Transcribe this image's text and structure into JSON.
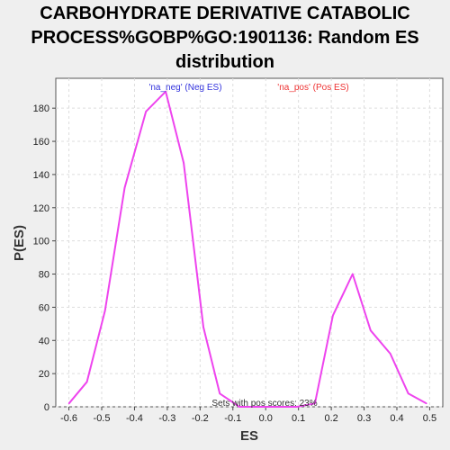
{
  "chart_data": {
    "type": "line",
    "title_lines": [
      "CARBOHYDRATE DERIVATIVE CATABOLIC",
      "PROCESS%GOBP%GO:1901136: Random ES",
      "distribution"
    ],
    "xlabel": "ES",
    "ylabel": "P(ES)",
    "xlim": [
      -0.64,
      0.54
    ],
    "ylim": [
      0,
      198
    ],
    "x_ticks": [
      -0.6,
      -0.5,
      -0.4,
      -0.3,
      -0.2,
      -0.1,
      0.0,
      0.1,
      0.2,
      0.3,
      0.4,
      0.5
    ],
    "x_tick_labels": [
      "-0.6",
      "-0.5",
      "-0.4",
      "-0.3",
      "-0.2",
      "-0.1",
      "0.0",
      "0.1",
      "0.2",
      "0.3",
      "0.4",
      "0.5"
    ],
    "y_ticks": [
      0,
      20,
      40,
      60,
      80,
      100,
      120,
      140,
      160,
      180
    ],
    "y_tick_labels": [
      "0",
      "20",
      "40",
      "60",
      "80",
      "100",
      "120",
      "140",
      "160",
      "180"
    ],
    "grid": true,
    "series": [
      {
        "name": "",
        "color": "#ee44ee",
        "x": [
          -0.6,
          -0.545,
          -0.49,
          -0.43,
          -0.365,
          -0.305,
          -0.25,
          -0.19,
          -0.14,
          -0.08,
          -0.02,
          0.04,
          0.095,
          0.15,
          0.205,
          0.265,
          0.32,
          0.38,
          0.435,
          0.49
        ],
        "y": [
          2,
          15,
          58,
          132,
          178,
          190,
          147,
          48,
          8,
          0,
          0,
          0,
          0,
          2,
          55,
          80,
          46,
          32,
          8,
          2
        ]
      }
    ],
    "annotations": [
      {
        "text": "'na_neg' (Neg ES)",
        "color": "#3333dd"
      },
      {
        "text": "'na_pos' (Pos ES)",
        "color": "#ee3333"
      },
      {
        "text": "Sets with pos scores: 23%",
        "color": "#333333"
      }
    ]
  }
}
